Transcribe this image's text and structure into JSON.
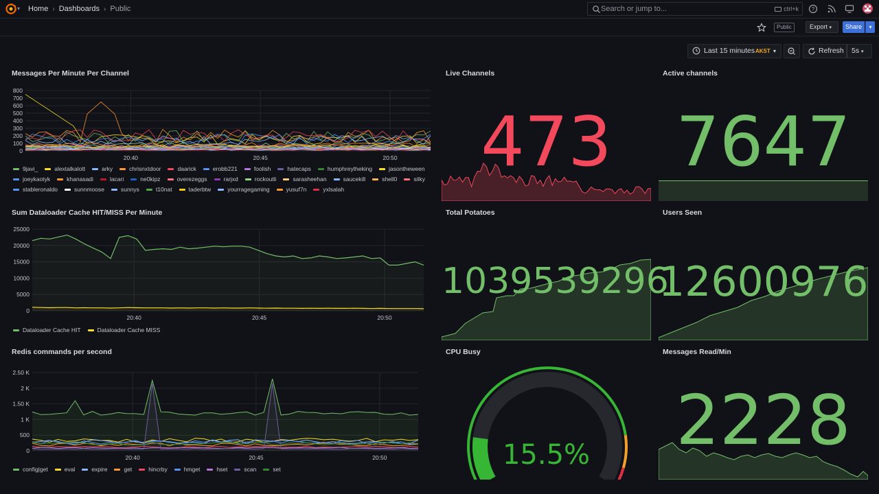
{
  "breadcrumb": [
    "Home",
    "Dashboards",
    "Public"
  ],
  "search": {
    "placeholder": "Search or jump to...",
    "shortcut": "ctrl+k"
  },
  "toolbar": {
    "public_badge": "Public",
    "export_label": "Export",
    "share_label": "Share"
  },
  "timepicker": {
    "range": "Last 15 minutes",
    "timezone": "AKST",
    "refresh_label": "Refresh",
    "interval": "5s"
  },
  "colors": {
    "green": "#73bf69",
    "red": "#f2495c",
    "orange": "#ff9830",
    "yellow": "#fade2a",
    "blue": "#5794f2"
  },
  "panels": {
    "messages_per_minute": {
      "title": "Messages Per Minute Per Channel",
      "chart_data": {
        "type": "line",
        "x_ticks": [
          "20:40",
          "20:45",
          "20:50"
        ],
        "y_ticks": [
          "0",
          "100",
          "200",
          "300",
          "400",
          "500",
          "600",
          "700",
          "800"
        ],
        "ylim": [
          0,
          800
        ],
        "series": [
          {
            "name": "9javi_",
            "color": "#73bf69"
          },
          {
            "name": "alextalkalott",
            "color": "#fade2a"
          },
          {
            "name": "arky",
            "color": "#8ab8ff"
          },
          {
            "name": "chrisnxtdoor",
            "color": "#ff9830"
          },
          {
            "name": "daarick",
            "color": "#f2495c"
          },
          {
            "name": "erobb221",
            "color": "#5794f2"
          },
          {
            "name": "foolish",
            "color": "#b877d9"
          },
          {
            "name": "hatecaps",
            "color": "#705da0"
          },
          {
            "name": "humphreytheking",
            "color": "#37872d"
          },
          {
            "name": "jasontheween",
            "color": "#fade2a"
          },
          {
            "name": "joeykaotyk",
            "color": "#5794f2"
          },
          {
            "name": "khanasadi",
            "color": "#ff9830"
          },
          {
            "name": "lacari",
            "color": "#c4162a"
          },
          {
            "name": "ne0kipz",
            "color": "#1f60c4"
          },
          {
            "name": "overezeggs",
            "color": "#ff7383"
          },
          {
            "name": "rarjxd",
            "color": "#8f3bb8"
          },
          {
            "name": "rockoutli",
            "color": "#96d98d"
          },
          {
            "name": "sarasheehan",
            "color": "#ffcb7d"
          },
          {
            "name": "saucekill",
            "color": "#8ab8ff"
          },
          {
            "name": "shell0",
            "color": "#ffb357"
          },
          {
            "name": "silky",
            "color": "#ff7383"
          },
          {
            "name": "stableronaldo",
            "color": "#5794f2"
          },
          {
            "name": "sunnmoose",
            "color": "#ffffff"
          },
          {
            "name": "sunnys",
            "color": "#8ab8ff"
          },
          {
            "name": "t10nat",
            "color": "#56a64b"
          },
          {
            "name": "taderbtw",
            "color": "#f2cc0c"
          },
          {
            "name": "yourragegaming",
            "color": "#8ab8ff"
          },
          {
            "name": "yusuf7n",
            "color": "#ff9830"
          },
          {
            "name": "yxlsalah",
            "color": "#e02f44"
          }
        ]
      }
    },
    "live_channels": {
      "title": "Live Channels",
      "value": "473",
      "color": "#f2495c"
    },
    "active_channels": {
      "title": "Active channels",
      "value": "7647",
      "color": "#73bf69"
    },
    "dataloader_cache": {
      "title": "Sum Dataloader Cache HIT/MISS Per Minute",
      "chart_data": {
        "type": "line",
        "x_ticks": [
          "20:40",
          "20:45",
          "20:50"
        ],
        "y_ticks": [
          "0",
          "5000",
          "10000",
          "15000",
          "20000",
          "25000"
        ],
        "ylim": [
          0,
          25000
        ],
        "series": [
          {
            "name": "Dataloader Cache HIT",
            "color": "#73bf69",
            "values": [
              21500,
              22200,
              22000,
              22600,
              23200,
              22000,
              20500,
              19200,
              18000,
              16000,
              22500,
              23000,
              22000,
              18500,
              18800,
              19000,
              18800,
              19500,
              19000,
              19200,
              19500,
              19800,
              19600,
              19800,
              19800,
              19500,
              18500,
              17500,
              16800,
              16500,
              16800,
              16000,
              16200,
              16800,
              16500,
              16000,
              16200,
              16500,
              16800,
              16000,
              16200,
              14000,
              14000,
              14500,
              15000,
              14000
            ]
          },
          {
            "name": "Dataloader Cache MISS",
            "color": "#fade2a",
            "values": [
              1100,
              1000,
              950,
              1000,
              1000,
              900,
              950,
              900,
              900,
              850,
              900,
              1000,
              950,
              900,
              900,
              900,
              850,
              900,
              850,
              900,
              900,
              850,
              900,
              850,
              850,
              900,
              850,
              800,
              850,
              800,
              800,
              750,
              800,
              750,
              800,
              750,
              750,
              800,
              750,
              700,
              750,
              700,
              700,
              700,
              700,
              650
            ]
          }
        ]
      }
    },
    "total_potatoes": {
      "title": "Total Potatoes",
      "value": "1039539296",
      "color": "#73bf69"
    },
    "users_seen": {
      "title": "Users Seen",
      "value": "12600976",
      "color": "#73bf69"
    },
    "redis_commands": {
      "title": "Redis commands per second",
      "chart_data": {
        "type": "line",
        "x_ticks": [
          "20:40",
          "20:45",
          "20:50"
        ],
        "y_ticks": [
          "0",
          "500",
          "1 K",
          "1.50 K",
          "2 K",
          "2.50 K"
        ],
        "ylim": [
          0,
          2500
        ],
        "series": [
          {
            "name": "config|get",
            "color": "#73bf69"
          },
          {
            "name": "eval",
            "color": "#fade2a"
          },
          {
            "name": "expire",
            "color": "#8ab8ff"
          },
          {
            "name": "get",
            "color": "#ff9830"
          },
          {
            "name": "hincrby",
            "color": "#f2495c"
          },
          {
            "name": "hmget",
            "color": "#5794f2"
          },
          {
            "name": "hset",
            "color": "#b877d9"
          },
          {
            "name": "scan",
            "color": "#705da0"
          },
          {
            "name": "set",
            "color": "#37872d"
          }
        ]
      }
    },
    "cpu_busy": {
      "title": "CPU Busy",
      "value": "15.5%",
      "percent": 15.5,
      "color": "#73bf69"
    },
    "messages_read": {
      "title": "Messages Read/Min",
      "value": "2228",
      "color": "#73bf69"
    }
  }
}
